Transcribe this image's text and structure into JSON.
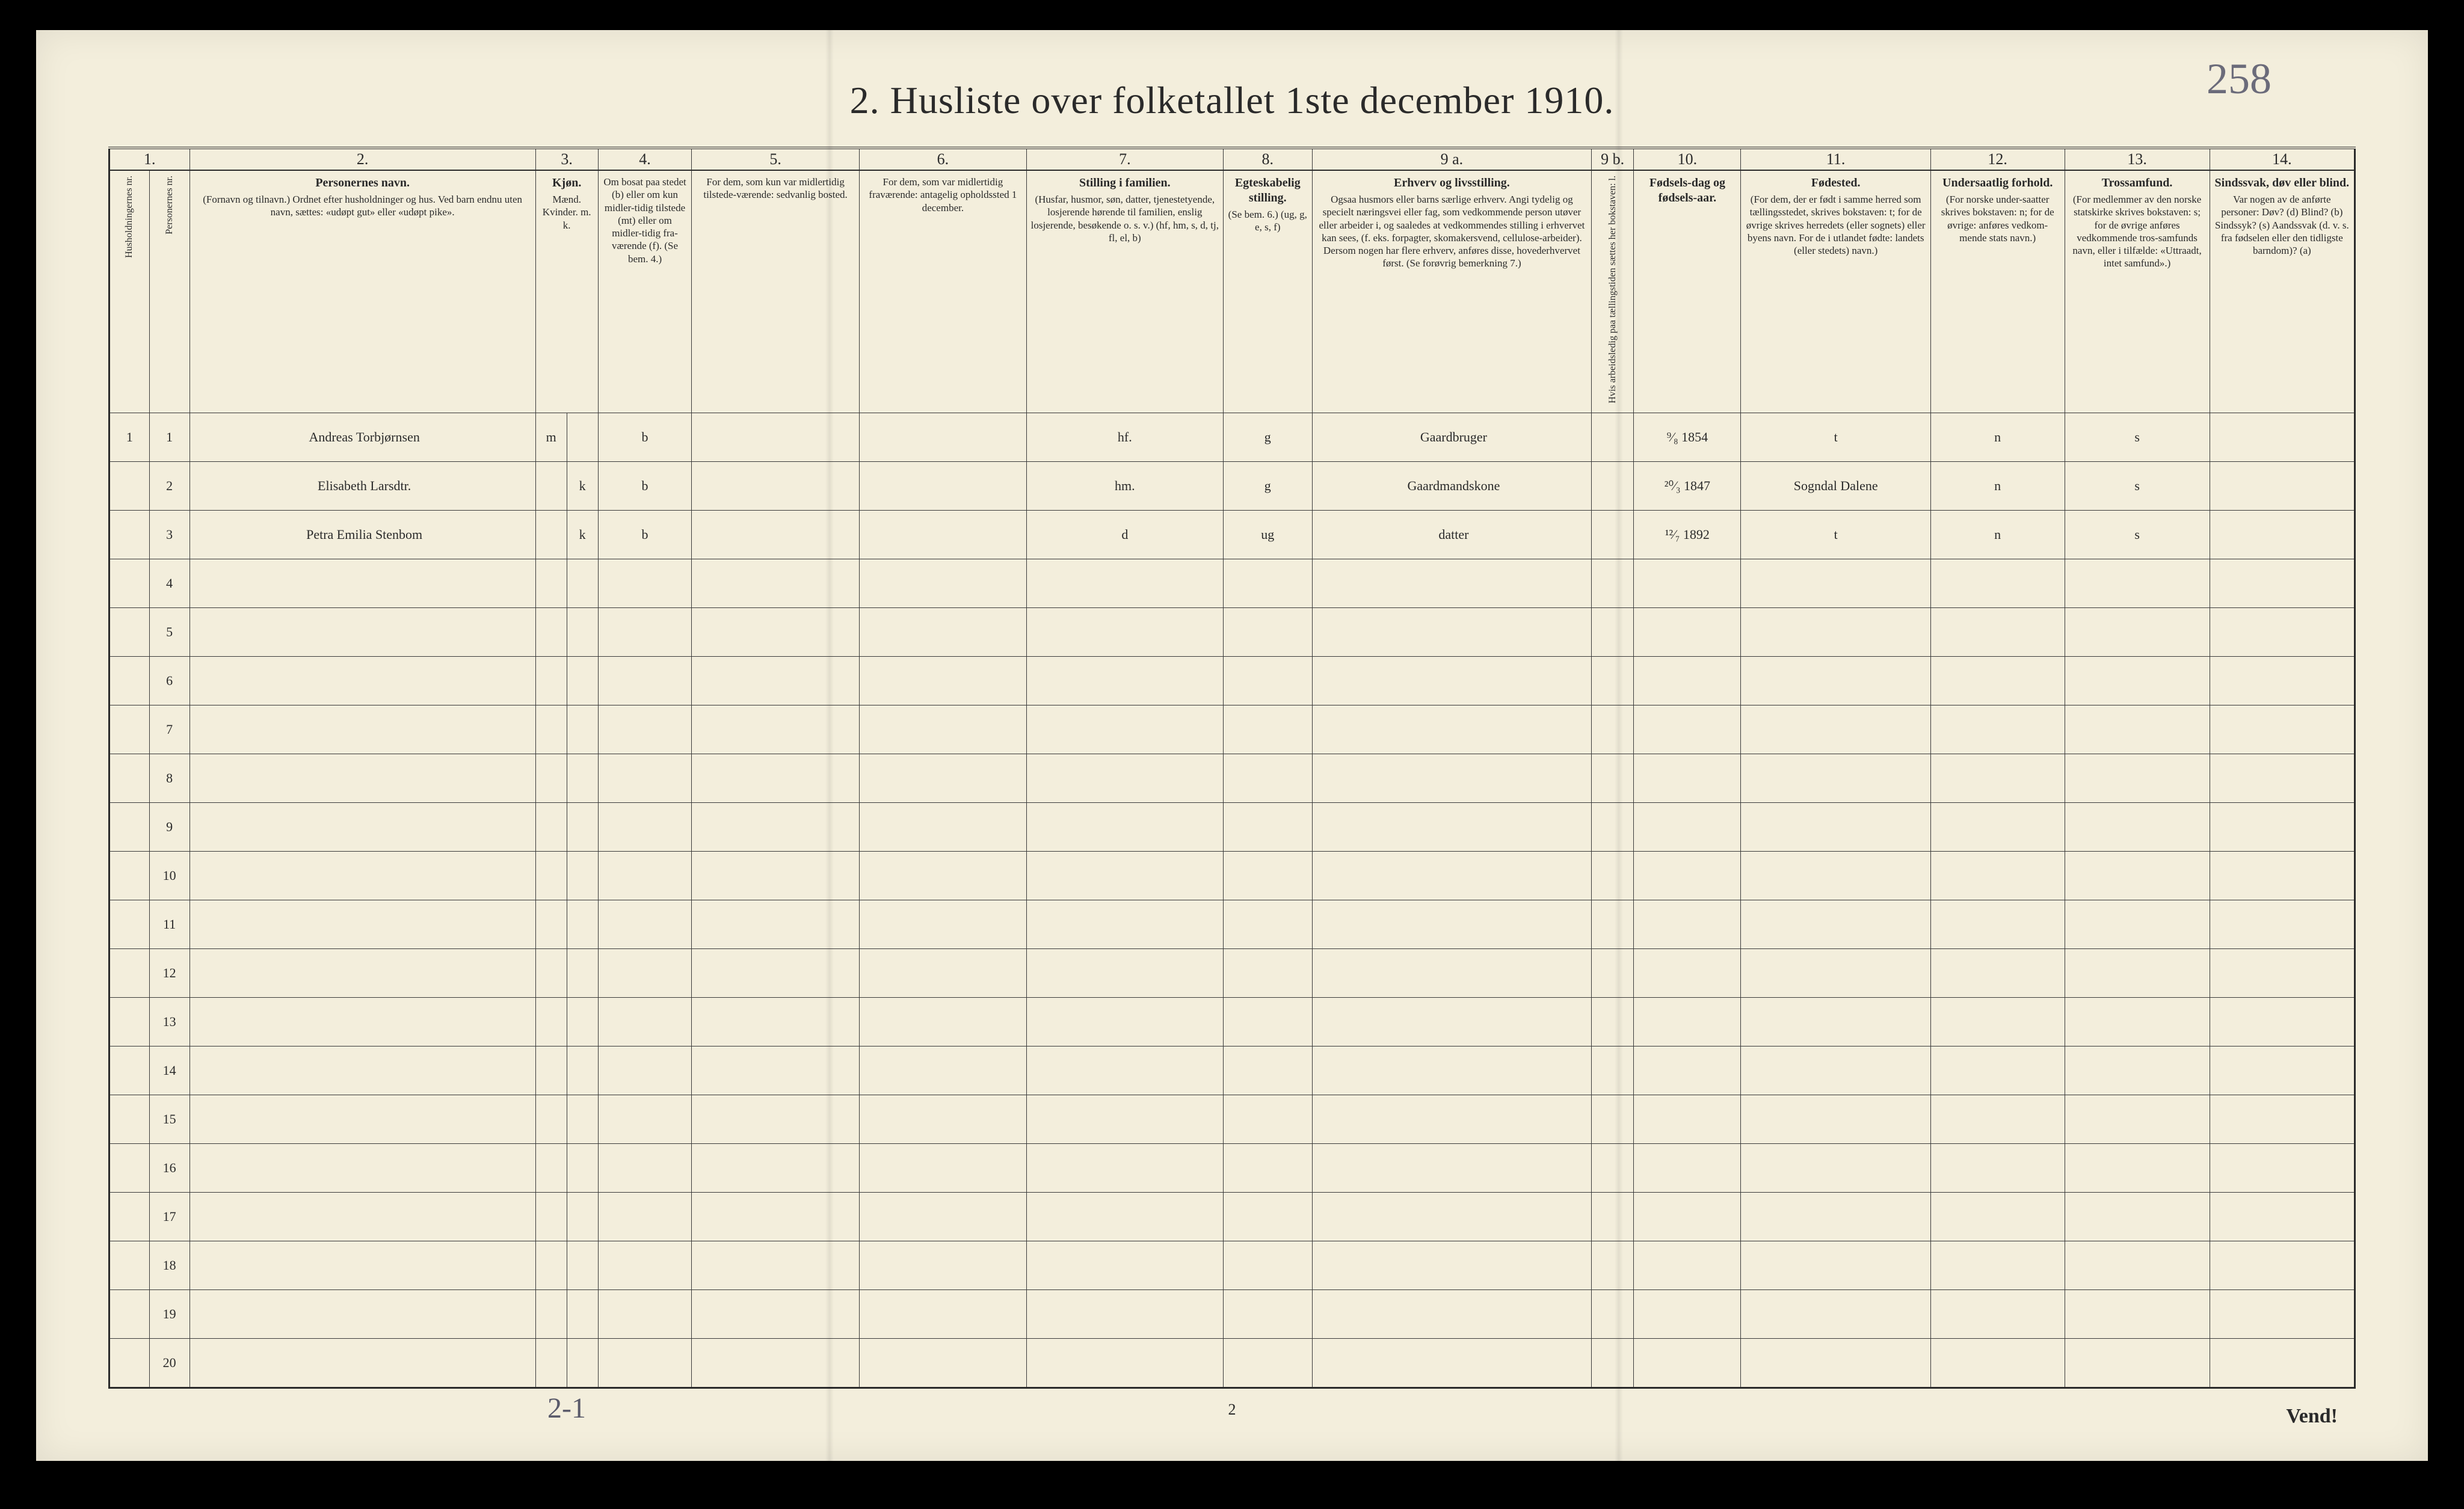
{
  "page": {
    "title": "2.  Husliste over folketallet 1ste december 1910.",
    "handwritten_topright": "258",
    "footer_page_number": "2",
    "vend_text": "Vend!",
    "bottom_hand_note": "2-1",
    "background_color": "#f3eedc",
    "ink_color": "#2a2a2a",
    "handwriting_color": "#4a4a55"
  },
  "columns": {
    "group_numbers": [
      "1.",
      "2.",
      "3.",
      "4.",
      "5.",
      "6.",
      "7.",
      "8.",
      "9 a.",
      "9 b.",
      "10.",
      "11.",
      "12.",
      "13.",
      "14."
    ],
    "headers": [
      {
        "main": "",
        "sub": "Husholdningernes nr."
      },
      {
        "main": "",
        "sub": "Personernes nr."
      },
      {
        "main": "Personernes navn.",
        "sub": "(Fornavn og tilnavn.)\nOrdnet efter husholdninger og hus.\nVed barn endnu uten navn, sættes: «udøpt gut» eller «udøpt pike»."
      },
      {
        "main": "Kjøn.",
        "sub": "Mænd.  Kvinder.\nm.   k."
      },
      {
        "main": "",
        "sub": "Om bosat paa stedet (b) eller om kun midler-tidig tilstede (mt) eller om midler-tidig fra-værende (f). (Se bem. 4.)"
      },
      {
        "main": "",
        "sub": "For dem, som kun var midlertidig tilstede-værende:\nsedvanlig bosted."
      },
      {
        "main": "",
        "sub": "For dem, som var midlertidig fraværende:\nantagelig opholdssted 1 december."
      },
      {
        "main": "Stilling i familien.",
        "sub": "(Husfar, husmor, søn, datter, tjenestetyende, losjerende hørende til familien, enslig losjerende, besøkende o. s. v.)\n(hf, hm, s, d, tj, fl, el, b)"
      },
      {
        "main": "Egteskabelig stilling.",
        "sub": "(Se bem. 6.)\n(ug, g, e, s, f)"
      },
      {
        "main": "Erhverv og livsstilling.",
        "sub": "Ogsaa husmors eller barns særlige erhverv. Angi tydelig og specielt næringsvei eller fag, som vedkommende person utøver eller arbeider i, og saaledes at vedkommendes stilling i erhvervet kan sees, (f. eks. forpagter, skomakersvend, cellulose-arbeider). Dersom nogen har flere erhverv, anføres disse, hovederhvervet først. (Se forøvrig bemerkning 7.)"
      },
      {
        "main": "",
        "sub": "Hvis arbeidsledig paa tællingstiden sættes her bokstaven: l."
      },
      {
        "main": "Fødsels-dag og fødsels-aar.",
        "sub": ""
      },
      {
        "main": "Fødested.",
        "sub": "(For dem, der er født i samme herred som tællingsstedet, skrives bokstaven: t; for de øvrige skrives herredets (eller sognets) eller byens navn. For de i utlandet fødte: landets (eller stedets) navn.)"
      },
      {
        "main": "Undersaatlig forhold.",
        "sub": "(For norske under-saatter skrives bokstaven: n; for de øvrige: anføres vedkom-mende stats navn.)"
      },
      {
        "main": "Trossamfund.",
        "sub": "(For medlemmer av den norske statskirke skrives bokstaven: s; for de øvrige anføres vedkommende tros-samfunds navn, eller i tilfælde: «Uttraadt, intet samfund».)"
      },
      {
        "main": "Sindssvak, døv eller blind.",
        "sub": "Var nogen av de anførte personer:\nDøv?  (d)\nBlind?  (b)\nSindssyk? (s)\nAandssvak (d. v. s. fra fødselen eller den tidligste barndom)? (a)"
      }
    ],
    "widths_pct": [
      1.8,
      1.8,
      15.5,
      1.4,
      1.4,
      4.2,
      7.5,
      7.5,
      8.8,
      4.0,
      12.5,
      1.9,
      4.8,
      8.5,
      6.0,
      6.5,
      6.5
    ]
  },
  "rows": [
    {
      "hh": "1",
      "pn": "1",
      "name": "Andreas Torbjørnsen",
      "sex_m": "m",
      "sex_k": "",
      "residence": "b",
      "temp_present": "",
      "temp_absent": "",
      "family_pos": "hf.",
      "marital": "g",
      "occupation": "Gaardbruger",
      "unemployed": "",
      "birth": "⁹⁄₈ 1854",
      "birthplace": "t",
      "nationality": "n",
      "faith": "s",
      "disability": ""
    },
    {
      "hh": "",
      "pn": "2",
      "name": "Elisabeth Larsdtr.",
      "sex_m": "",
      "sex_k": "k",
      "residence": "b",
      "temp_present": "",
      "temp_absent": "",
      "family_pos": "hm.",
      "marital": "g",
      "occupation": "Gaardmandskone",
      "unemployed": "",
      "birth": "²⁰⁄₃ 1847",
      "birthplace": "Sogndal Dalene",
      "nationality": "n",
      "faith": "s",
      "disability": ""
    },
    {
      "hh": "",
      "pn": "3",
      "name": "Petra Emilia Stenbom",
      "sex_m": "",
      "sex_k": "k",
      "residence": "b",
      "temp_present": "",
      "temp_absent": "",
      "family_pos": "d",
      "marital": "ug",
      "occupation": "datter",
      "unemployed": "",
      "birth": "¹²⁄₇ 1892",
      "birthplace": "t",
      "nationality": "n",
      "faith": "s",
      "disability": ""
    }
  ],
  "empty_rows": [
    4,
    5,
    6,
    7,
    8,
    9,
    10,
    11,
    12,
    13,
    14,
    15,
    16,
    17,
    18,
    19,
    20
  ]
}
